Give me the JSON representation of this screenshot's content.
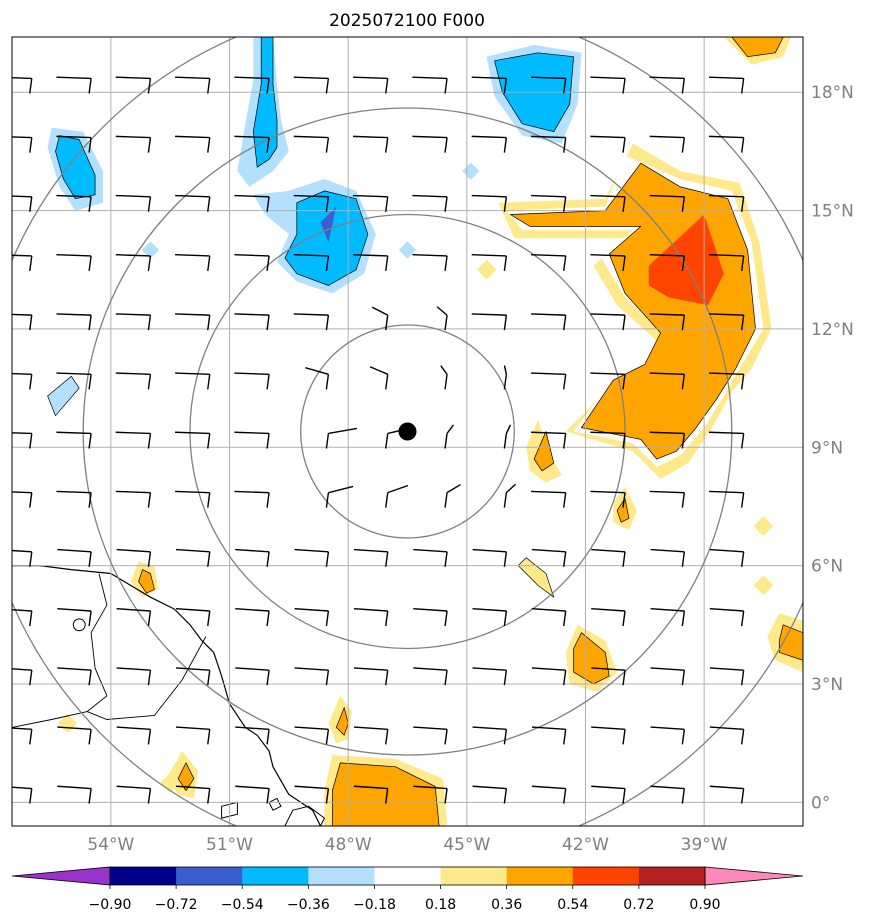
{
  "title": "2025072100 F000",
  "map": {
    "lon_range": [
      -56.5,
      -36.5
    ],
    "lat_range": [
      -0.6,
      19.4
    ],
    "lon_ticks": [
      {
        "value": -54,
        "label": "54°W"
      },
      {
        "value": -51,
        "label": "51°W"
      },
      {
        "value": -48,
        "label": "48°W"
      },
      {
        "value": -45,
        "label": "45°W"
      },
      {
        "value": -42,
        "label": "42°W"
      },
      {
        "value": -39,
        "label": "39°W"
      }
    ],
    "lat_ticks": [
      {
        "value": 0,
        "label": "0°"
      },
      {
        "value": 3,
        "label": "3°N"
      },
      {
        "value": 6,
        "label": "6°N"
      },
      {
        "value": 9,
        "label": "9°N"
      },
      {
        "value": 12,
        "label": "12°N"
      },
      {
        "value": 15,
        "label": "15°N"
      },
      {
        "value": 18,
        "label": "18°N"
      }
    ],
    "gridlines": true,
    "center_marker": {
      "lon": -46.5,
      "lat": 9.4
    },
    "range_rings_deg": [
      2.7,
      5.5,
      8.2,
      10.9
    ],
    "wind_barbs": "regular 1.5° grid of wind barbs",
    "coastline": "northeast South America (Guianas / Amapá) at lower left"
  },
  "colorbar": {
    "ticks": [
      "−0.90",
      "−0.72",
      "−0.54",
      "−0.36",
      "−0.18",
      "0.18",
      "0.36",
      "0.54",
      "0.72",
      "0.90"
    ],
    "colors": [
      "#9933cc",
      "#000088",
      "#3a5ecc",
      "#00bbff",
      "#b3e0ff",
      "#ffffff",
      "#ffe98a",
      "#ffa500",
      "#ff4400",
      "#b22222",
      "#ff88bb"
    ],
    "extend": "both"
  }
}
